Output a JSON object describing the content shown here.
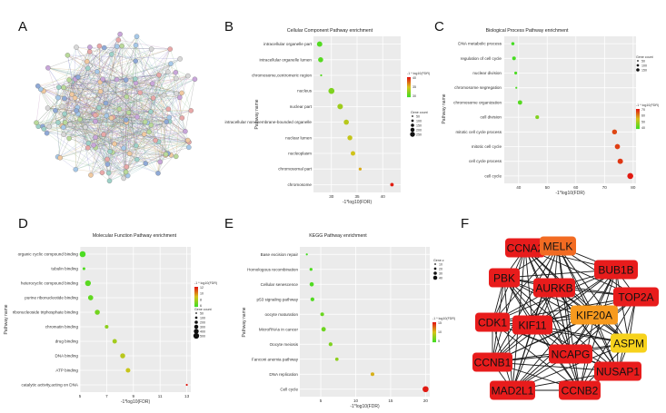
{
  "panel_labels": [
    "A",
    "B",
    "C",
    "D",
    "E",
    "F"
  ],
  "legend": {
    "color_title": "-1 * log10(FDR)",
    "count_title": "Gene count",
    "count_title_e": "Gene.c"
  },
  "colors": {
    "low": "#44dd22",
    "mid": "#d6c21a",
    "high": "#e11a12"
  },
  "chart_data": [
    {
      "id": "B",
      "type": "scatter",
      "title": "Cellular Component Pathway enrichment",
      "xlabel": "-1*log10(FDR)",
      "ylabel": "Pathway name",
      "xlim": [
        26.5,
        43.5
      ],
      "xticks": [
        30,
        35,
        40
      ],
      "categories": [
        "intracellular organelle part",
        "intracellular organelle lumen",
        "chromosome,centromeric region",
        "nucleus",
        "nuclear part",
        "intracellular non-membrane-bounded organelle",
        "nuclear lumen",
        "nucleoplasm",
        "chromosomal part",
        "chromosome"
      ],
      "x": [
        27.7,
        27.9,
        28.0,
        30.0,
        31.7,
        32.9,
        33.6,
        34.2,
        35.6,
        41.8
      ],
      "count": [
        280,
        240,
        40,
        380,
        300,
        250,
        220,
        180,
        60,
        90
      ],
      "legend_counts": [
        "50",
        "100",
        "150",
        "200",
        "250"
      ],
      "color_ticks": [
        "40",
        "35",
        "30"
      ],
      "color_range": [
        27,
        42
      ]
    },
    {
      "id": "C",
      "type": "scatter",
      "title": "Biological Process Pathway enrichment",
      "xlabel": "-1*log10(FDR)",
      "ylabel": "Pathway name",
      "xlim": [
        35,
        81
      ],
      "xticks": [
        40,
        50,
        60,
        70,
        80
      ],
      "categories": [
        "DNA metabolic process",
        "regulation of cell cycle",
        "nuclear division",
        "chromosome segregation",
        "chromosome organization",
        "cell division",
        "mitotic cell cycle process",
        "mitotic cell cycle",
        "cell cycle process",
        "cell cycle"
      ],
      "x": [
        38.0,
        38.4,
        39.0,
        39.2,
        40.5,
        46.5,
        73.5,
        74.5,
        75.5,
        79.0
      ],
      "count": [
        50,
        60,
        45,
        40,
        80,
        60,
        100,
        110,
        120,
        150
      ],
      "legend_counts": [
        "50",
        "100",
        "150"
      ],
      "color_ticks": [
        "70",
        "60",
        "50",
        "40"
      ],
      "color_range": [
        38,
        79
      ]
    },
    {
      "id": "D",
      "type": "scatter",
      "title": "Molecular Function Pathway enrichment",
      "xlabel": "-1*log10(FDR)",
      "ylabel": "Pathway name",
      "xlim": [
        5,
        13.3
      ],
      "xticks": [
        5,
        7,
        9,
        11,
        13
      ],
      "categories": [
        "organic cyclic compound binding",
        "tubulin binding",
        "heterocyclic compound binding",
        "purine ribonucleotide binding",
        "ribonucleoside triphosphate binding",
        "chromatin binding",
        "drug binding",
        "DNA binding",
        "ATP binding",
        "catalytic activity,acting on DNA"
      ],
      "x": [
        5.2,
        5.3,
        5.6,
        5.8,
        6.3,
        7.0,
        7.6,
        8.2,
        8.6,
        13.0
      ],
      "count": [
        500,
        60,
        450,
        330,
        300,
        120,
        220,
        300,
        240,
        40
      ],
      "legend_counts": [
        "50",
        "100",
        "200",
        "300",
        "400",
        "500"
      ],
      "color_ticks": [
        "12",
        "10",
        "8",
        "6"
      ],
      "color_range": [
        5,
        13
      ]
    },
    {
      "id": "E",
      "type": "scatter",
      "title": "KEGG Pathway enrichment",
      "xlabel": "-1*log10(FDR)",
      "ylabel": "Pathway name",
      "xlim": [
        2,
        20.6
      ],
      "xticks": [
        5,
        10,
        15,
        20
      ],
      "categories": [
        "Base excision repair",
        "Homologous recombination",
        "Cellular senescence",
        "p53 signaling pathway",
        "oocyte maturation",
        "MicroRNAs in cancer",
        "Oocyte meiosis",
        "Fanconi anemia pathway",
        "DNA replication",
        "Cell cycle"
      ],
      "x": [
        3.0,
        3.6,
        3.7,
        3.8,
        5.2,
        5.4,
        6.4,
        7.3,
        12.4,
        20.0
      ],
      "count": [
        8,
        10,
        18,
        15,
        14,
        20,
        15,
        12,
        14,
        40
      ],
      "legend_counts": [
        "10",
        "20",
        "30",
        "40"
      ],
      "color_ticks": [
        "15",
        "10",
        "5"
      ],
      "color_range": [
        3,
        20
      ]
    }
  ],
  "network_f": {
    "nodes": [
      {
        "label": "CCNA2",
        "color": "#e81c1c"
      },
      {
        "label": "MELK",
        "color": "#f26b22"
      },
      {
        "label": "PBK",
        "color": "#e81c1c"
      },
      {
        "label": "BUB1B",
        "color": "#e81c1c"
      },
      {
        "label": "AURKB",
        "color": "#e81c1c"
      },
      {
        "label": "TOP2A",
        "color": "#e81c1c"
      },
      {
        "label": "CDK1",
        "color": "#e81c1c"
      },
      {
        "label": "KIF11",
        "color": "#e81c1c"
      },
      {
        "label": "KIF20A",
        "color": "#f79a1e"
      },
      {
        "label": "ASPM",
        "color": "#f7d21c"
      },
      {
        "label": "CCNB1",
        "color": "#e81c1c"
      },
      {
        "label": "NCAPG",
        "color": "#e81c1c"
      },
      {
        "label": "NUSAP1",
        "color": "#e81c1c"
      },
      {
        "label": "MAD2L1",
        "color": "#e81c1c"
      },
      {
        "label": "CCNB2",
        "color": "#e81c1c"
      }
    ]
  }
}
